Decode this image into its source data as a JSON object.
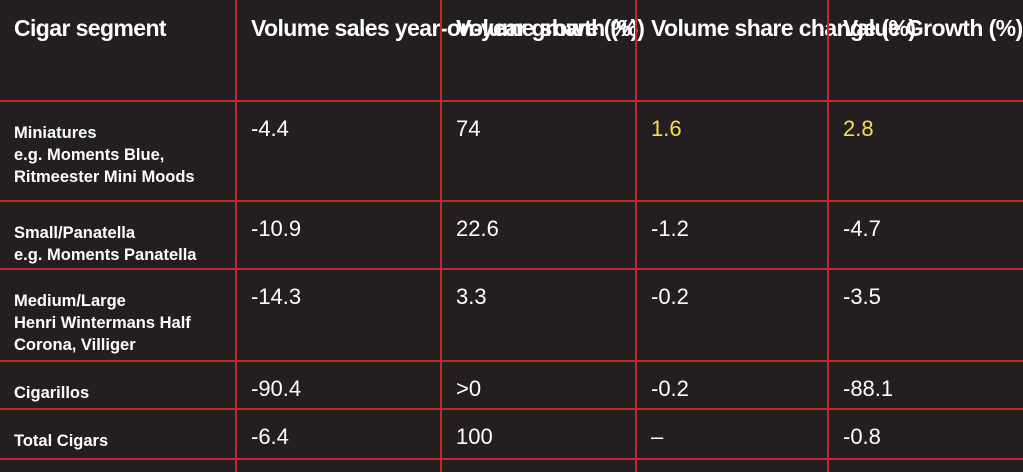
{
  "table": {
    "headers": [
      "Cigar segment",
      "Volume sales year-on-year growth (%)",
      "Volume share (%)",
      "Volume share change (%)",
      "Value Growth (%)"
    ],
    "rows": [
      [
        [
          "Miniatures",
          "e.g. Moments Blue,",
          "Ritmeester Mini Moods"
        ],
        "-4.4",
        "74",
        "1.6",
        "2.8"
      ],
      [
        [
          "Small/Panatella",
          "e.g. Moments Panatella"
        ],
        "-10.9",
        "22.6",
        "-1.2",
        "-4.7"
      ],
      [
        [
          "Medium/Large",
          "Henri Wintermans Half",
          "Corona, Villiger"
        ],
        "-14.3",
        "3.3",
        "-0.2",
        "-3.5"
      ],
      [
        [
          "Cigarillos"
        ],
        "-90.4",
        ">0",
        "-0.2",
        "-88.1"
      ],
      [
        [
          "Total Cigars"
        ],
        "-6.4",
        "100",
        "–",
        "-0.8"
      ]
    ]
  }
}
